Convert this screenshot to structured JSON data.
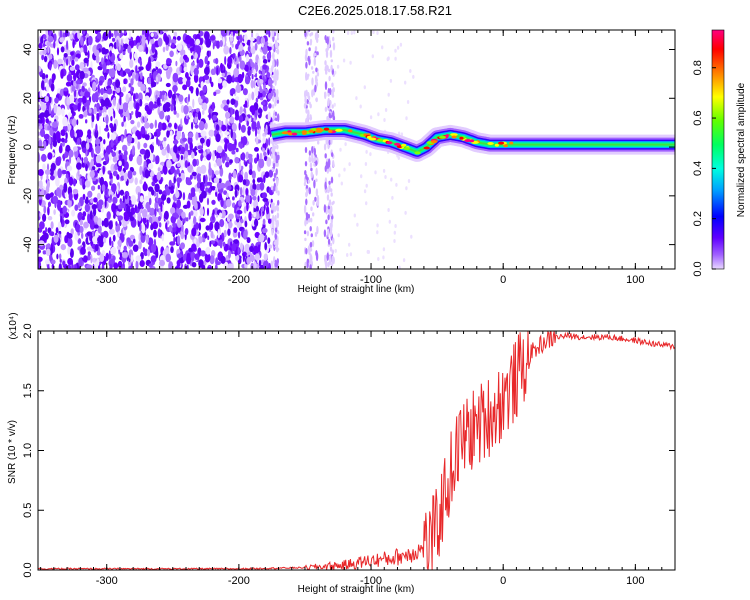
{
  "title": "C2E6.2025.018.17.58.R21",
  "chart_data": [
    {
      "type": "heatmap",
      "xlabel": "Height of straight line (km)",
      "ylabel": "Frequency (Hz)",
      "xlim": [
        -352,
        130
      ],
      "ylim": [
        -50,
        48
      ],
      "xticks": [
        -300,
        -200,
        -100,
        0,
        100
      ],
      "yticks": [
        -40,
        -20,
        0,
        20,
        40
      ],
      "grid": false,
      "colorbar": {
        "label": "Normalized spectral amplitude",
        "range": [
          0.0,
          0.95
        ],
        "ticks": [
          "0.0",
          "0.2",
          "0.4",
          "0.6",
          "0.8"
        ],
        "colormap": "rainbow (violet → blue → cyan → green → yellow → red → magenta)",
        "color_stops": [
          "#e8d8ff",
          "#8000ff",
          "#0000ff",
          "#00c0ff",
          "#00ff80",
          "#40ff00",
          "#ffff00",
          "#ff8000",
          "#ff0000",
          "#ff0080"
        ]
      },
      "signal_track": {
        "x": [
          -175,
          -165,
          -150,
          -135,
          -120,
          -105,
          -95,
          -85,
          -75,
          -65,
          -58,
          -50,
          -40,
          -30,
          -20,
          -10,
          0,
          20,
          60,
          100,
          130
        ],
        "y": [
          5,
          6,
          6,
          7,
          7,
          5,
          3,
          2,
          0,
          -2,
          0,
          4,
          5,
          4,
          2,
          1,
          1,
          1,
          1,
          1,
          1
        ]
      },
      "noise_region": [
        -352,
        -175
      ]
    },
    {
      "type": "line",
      "xlabel": "Height of straight line (km)",
      "ylabel": "SNR (10 * v/v)",
      "multiplier": "(x10⁴)",
      "xlim": [
        -352,
        130
      ],
      "ylim": [
        0.0,
        2.0
      ],
      "xticks": [
        -300,
        -200,
        -100,
        0,
        100
      ],
      "yticks": [
        "0.0",
        "0.5",
        "1.0",
        "1.5",
        "2.0"
      ],
      "grid": false,
      "color": "#e8282a",
      "series": [
        {
          "x": [
            -352,
            -200,
            -150,
            -120,
            -100,
            -90,
            -80,
            -70,
            -60,
            -55,
            -50,
            -45,
            -40,
            -35,
            -30,
            -25,
            -20,
            -15,
            -10,
            -5,
            0,
            5,
            10,
            15,
            20,
            25,
            30,
            35,
            40,
            50,
            60,
            80,
            100,
            115,
            130
          ],
          "values": [
            0.01,
            0.01,
            0.02,
            0.04,
            0.08,
            0.09,
            0.11,
            0.14,
            0.18,
            0.24,
            0.35,
            0.6,
            0.8,
            1.0,
            1.1,
            1.15,
            1.2,
            1.25,
            1.3,
            1.35,
            1.45,
            1.5,
            1.6,
            1.7,
            1.8,
            1.85,
            1.9,
            1.93,
            1.95,
            1.96,
            1.95,
            1.95,
            1.92,
            1.89,
            1.87
          ]
        }
      ]
    }
  ]
}
